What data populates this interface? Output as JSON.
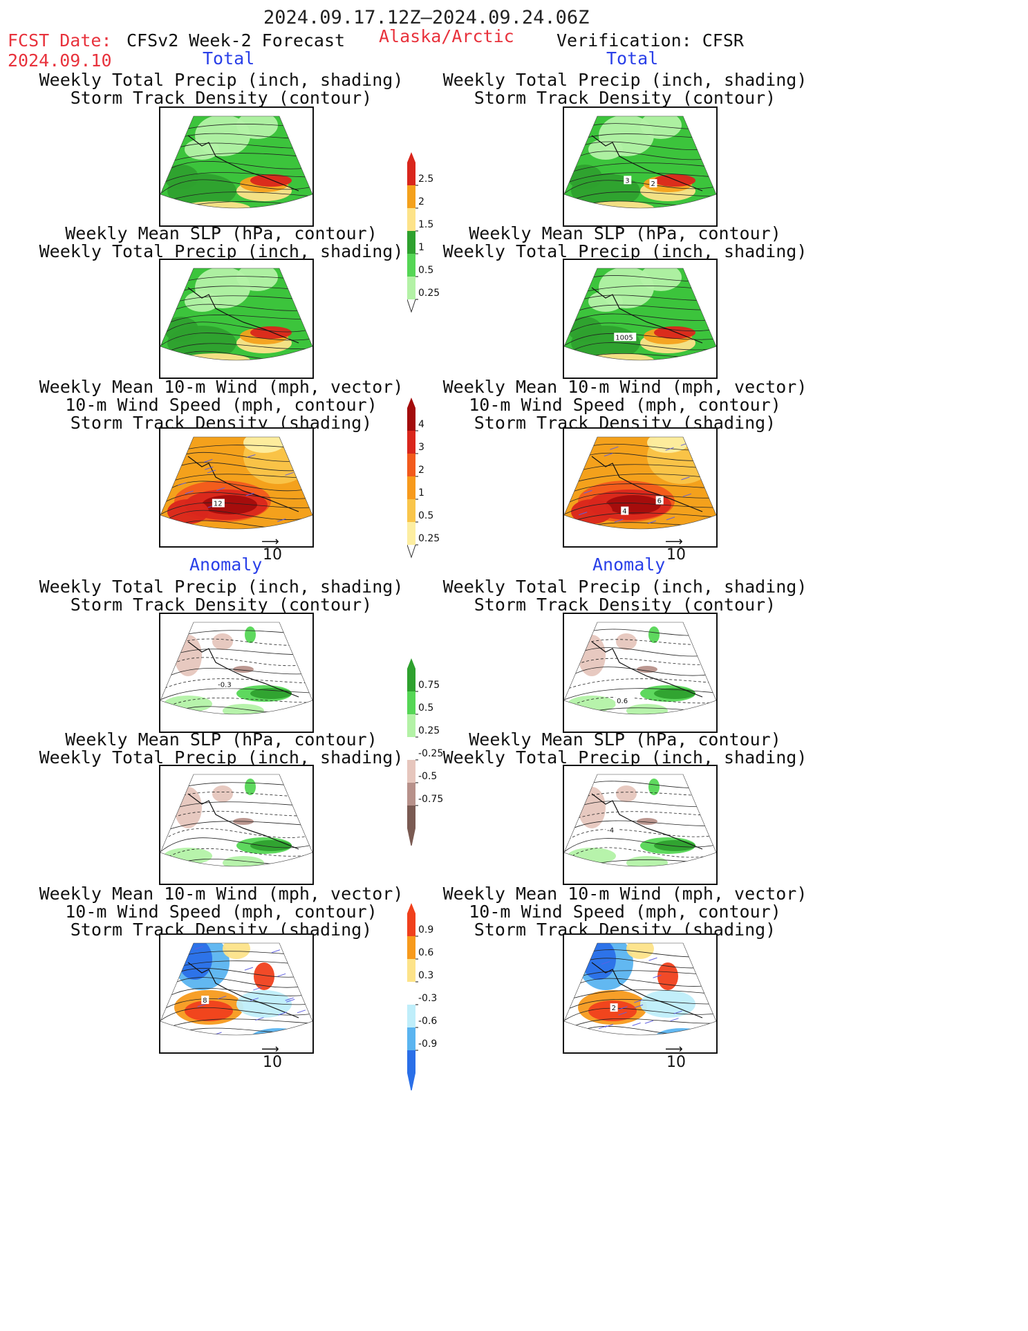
{
  "header": {
    "date_range": "2024.09.17.12Z–2024.09.24.06Z",
    "fcst_label": "FCST Date:",
    "fcst_date": "2024.09.10",
    "model": "CFSv2 Week-2 Forecast",
    "region": "Alaska/Arctic",
    "verification": "Verification: CFSR"
  },
  "sections": {
    "total": "Total",
    "anomaly": "Anomaly"
  },
  "titles": {
    "precip_storm": [
      "Weekly Total Precip (inch, shading)",
      "Storm Track Density (contour)"
    ],
    "slp_precip": [
      "Weekly Mean SLP (hPa, contour)",
      "Weekly Total Precip (inch, shading)"
    ],
    "wind": [
      "Weekly Mean 10-m Wind (mph, vector)",
      "10-m Wind Speed (mph, contour)",
      "Storm Track Density (shading)"
    ]
  },
  "wind_reference": "10",
  "contour_labels": {
    "total_precip_obs": [
      "3",
      "2"
    ],
    "total_slp_obs": [
      "1005"
    ],
    "total_wind_fcst": [
      "12"
    ],
    "total_wind_obs": [
      "4",
      "6"
    ],
    "anom_precip_fcst": [
      "-0.3"
    ],
    "anom_precip_obs": [
      "0.6"
    ],
    "anom_slp_obs": [
      "-4"
    ],
    "anom_wind_fcst": [
      "8"
    ],
    "anom_wind_obs": [
      "2"
    ]
  },
  "colorbars": {
    "precip_total": {
      "ticks": [
        "2.5",
        "2",
        "1.5",
        "1",
        "0.5",
        "0.25"
      ],
      "colors": [
        "#d9261c",
        "#f4a11c",
        "#fde389",
        "#2ea12e",
        "#55d655",
        "#b3f2a6"
      ]
    },
    "storm_total": {
      "ticks": [
        "4",
        "3",
        "2",
        "1",
        "0.5",
        "0.25"
      ],
      "colors": [
        "#a30c0c",
        "#d9261c",
        "#f25a1c",
        "#f79a1c",
        "#f9c54a",
        "#fdeea1"
      ]
    },
    "precip_anom": {
      "ticks": [
        "0.75",
        "0.5",
        "0.25",
        "-0.25",
        "-0.5",
        "-0.75"
      ],
      "colors": [
        "#2ea12e",
        "#55d655",
        "#b3f2a6",
        "#ffffff",
        "#e6c6bd",
        "#b7918a",
        "#7a5a52"
      ]
    },
    "storm_anom": {
      "ticks": [
        "0.9",
        "0.6",
        "0.3",
        "-0.3",
        "-0.6",
        "-0.9"
      ],
      "colors": [
        "#f0401c",
        "#f79a1c",
        "#fde389",
        "#ffffff",
        "#bfeefa",
        "#5ab4f0",
        "#2a6fe8"
      ]
    }
  }
}
